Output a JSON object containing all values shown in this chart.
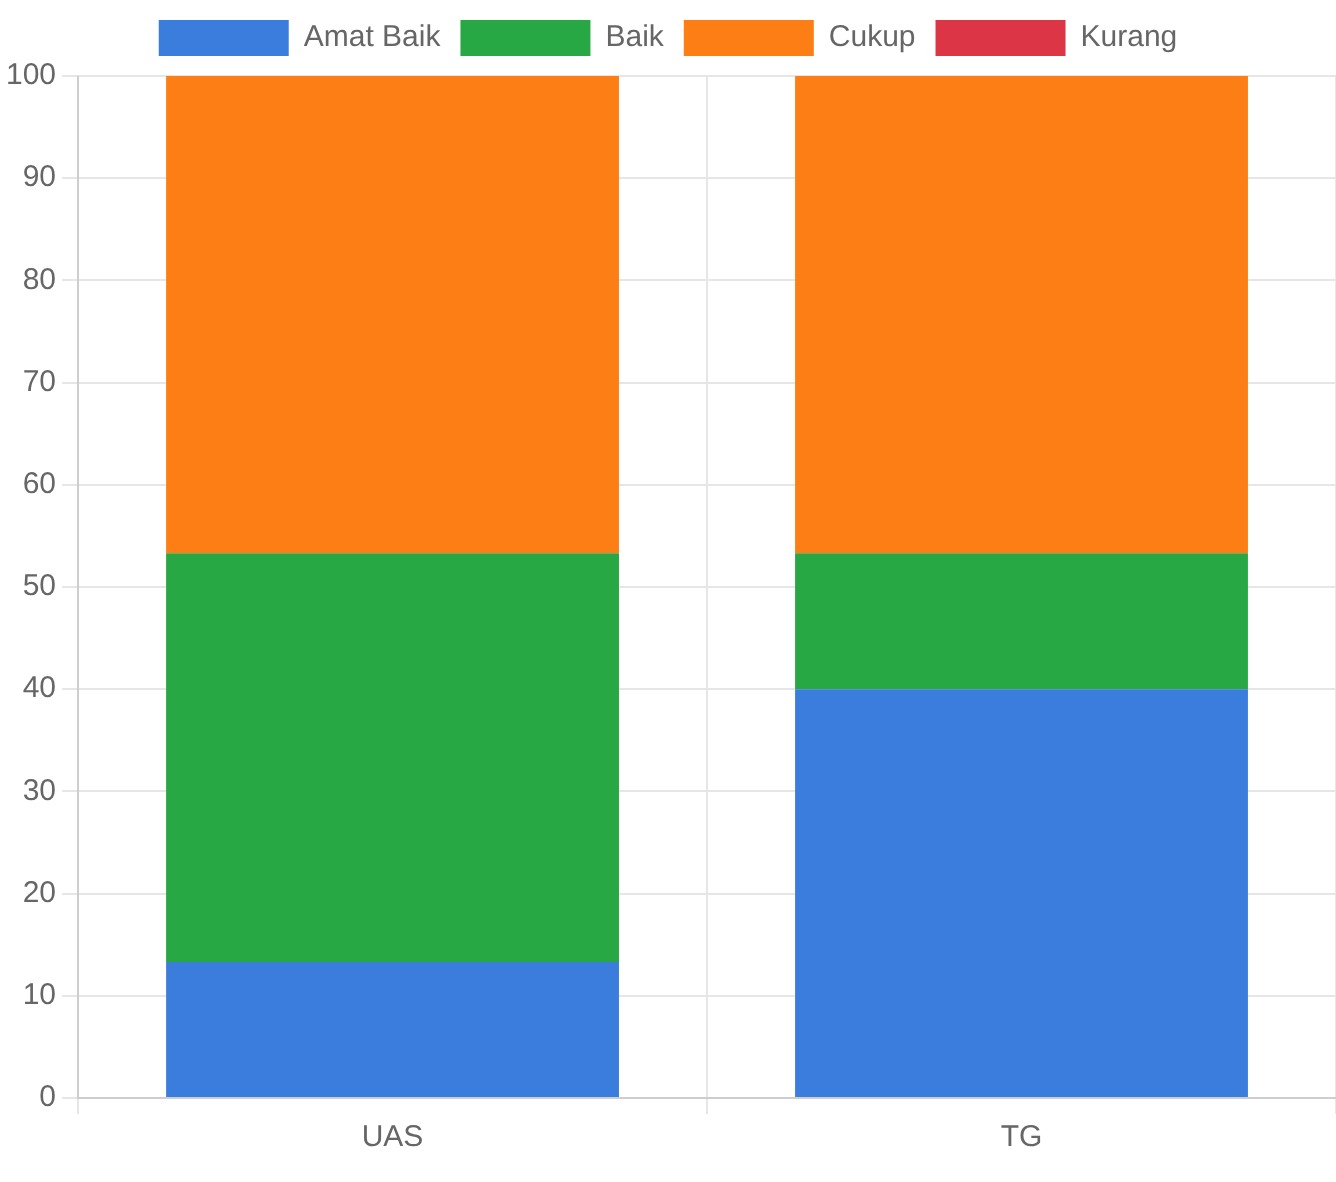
{
  "chart_data": {
    "type": "bar",
    "stacked": true,
    "categories": [
      "UAS",
      "TG"
    ],
    "series": [
      {
        "name": "Amat Baik",
        "color": "#3b7ddd",
        "values": [
          13.3,
          40
        ]
      },
      {
        "name": "Baik",
        "color": "#28a745",
        "values": [
          40,
          13.3
        ]
      },
      {
        "name": "Cukup",
        "color": "#fd7e14",
        "values": [
          46.7,
          46.7
        ]
      },
      {
        "name": "Kurang",
        "color": "#dc3545",
        "values": [
          0,
          0
        ]
      }
    ],
    "ylim": [
      0,
      100
    ],
    "yticks": [
      0,
      10,
      20,
      30,
      40,
      50,
      60,
      70,
      80,
      90,
      100
    ],
    "grid": true,
    "legend": "top"
  }
}
